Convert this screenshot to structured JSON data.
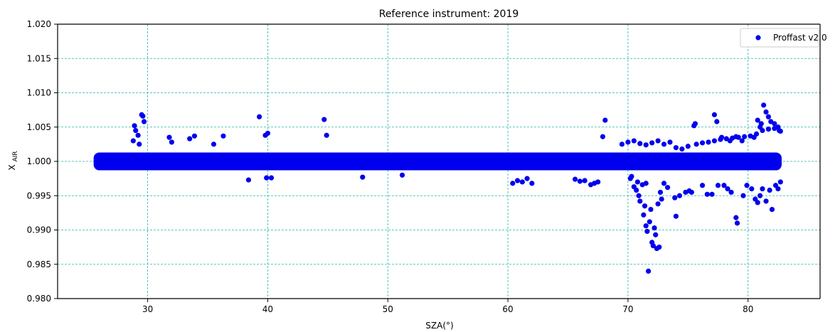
{
  "chart_data": {
    "type": "scatter",
    "title": "Reference instrument: 2019",
    "xlabel": "SZA(°)",
    "ylabel_main": "X",
    "ylabel_sub": "AIR",
    "xlim": [
      22.5,
      86
    ],
    "ylim": [
      0.98,
      1.02
    ],
    "x_ticks": [
      30,
      40,
      50,
      60,
      70,
      80
    ],
    "x_tick_labels": [
      "30",
      "40",
      "50",
      "60",
      "70",
      "80"
    ],
    "y_ticks": [
      0.98,
      0.985,
      0.99,
      0.995,
      1.0,
      1.005,
      1.01,
      1.015,
      1.02
    ],
    "y_tick_labels": [
      "0.980",
      "0.985",
      "0.990",
      "0.995",
      "1.000",
      "1.005",
      "1.010",
      "1.015",
      "1.020"
    ],
    "grid": true,
    "grid_color": "#20b2aa",
    "legend_placement": "top-right",
    "series": [
      {
        "name": "Proffast v2.0",
        "color": "#0000ee",
        "band": {
          "x_range": [
            25.5,
            82.8
          ],
          "y_center": 1.0,
          "y_half_width": 0.0013
        },
        "points": [
          [
            28.9,
            1.0052
          ],
          [
            29.0,
            1.0045
          ],
          [
            29.2,
            1.0038
          ],
          [
            29.5,
            1.0068
          ],
          [
            29.6,
            1.0066
          ],
          [
            29.7,
            1.0058
          ],
          [
            28.8,
            1.003
          ],
          [
            29.3,
            1.0025
          ],
          [
            31.8,
            1.0035
          ],
          [
            32.0,
            1.0028
          ],
          [
            33.5,
            1.0033
          ],
          [
            33.9,
            1.0037
          ],
          [
            35.5,
            1.0025
          ],
          [
            36.3,
            1.0037
          ],
          [
            39.3,
            1.0065
          ],
          [
            40.0,
            1.0041
          ],
          [
            39.8,
            1.0038
          ],
          [
            44.7,
            1.0061
          ],
          [
            44.9,
            1.0038
          ],
          [
            38.4,
            0.9973
          ],
          [
            39.9,
            0.9976
          ],
          [
            40.3,
            0.9976
          ],
          [
            47.9,
            0.9977
          ],
          [
            51.2,
            0.998
          ],
          [
            60.4,
            0.9968
          ],
          [
            60.8,
            0.9972
          ],
          [
            61.2,
            0.997
          ],
          [
            61.6,
            0.9975
          ],
          [
            62.0,
            0.9968
          ],
          [
            65.6,
            0.9974
          ],
          [
            66.0,
            0.9971
          ],
          [
            66.4,
            0.9972
          ],
          [
            66.9,
            0.9966
          ],
          [
            67.2,
            0.9968
          ],
          [
            67.5,
            0.997
          ],
          [
            67.9,
            1.0036
          ],
          [
            68.1,
            1.006
          ],
          [
            70.3,
            0.9978
          ],
          [
            70.5,
            0.9963
          ],
          [
            70.7,
            0.9958
          ],
          [
            70.9,
            0.995
          ],
          [
            71.0,
            0.9942
          ],
          [
            71.2,
            0.9966
          ],
          [
            71.3,
            0.9922
          ],
          [
            71.4,
            0.9935
          ],
          [
            71.5,
            0.9906
          ],
          [
            71.6,
            0.9898
          ],
          [
            71.7,
            0.984
          ],
          [
            71.8,
            0.9912
          ],
          [
            71.9,
            0.993
          ],
          [
            72.0,
            0.9882
          ],
          [
            72.1,
            0.9877
          ],
          [
            72.2,
            0.9903
          ],
          [
            72.3,
            0.9893
          ],
          [
            72.4,
            0.9873
          ],
          [
            72.5,
            0.9938
          ],
          [
            72.6,
            0.9875
          ],
          [
            72.7,
            0.9955
          ],
          [
            72.8,
            0.9945
          ],
          [
            73.0,
            0.9968
          ],
          [
            73.3,
            0.9962
          ],
          [
            73.9,
            0.9947
          ],
          [
            74.0,
            0.992
          ],
          [
            74.3,
            0.995
          ],
          [
            74.8,
            0.9955
          ],
          [
            75.1,
            0.9957
          ],
          [
            75.3,
            0.9955
          ],
          [
            75.5,
            1.0052
          ],
          [
            75.6,
            1.0055
          ],
          [
            76.2,
            0.9965
          ],
          [
            76.6,
            0.9952
          ],
          [
            77.0,
            0.9952
          ],
          [
            77.2,
            1.0068
          ],
          [
            77.4,
            1.0058
          ],
          [
            77.5,
            0.9965
          ],
          [
            72.5,
            1.003
          ],
          [
            73.0,
            1.0025
          ],
          [
            73.5,
            1.0028
          ],
          [
            74.0,
            1.002
          ],
          [
            74.5,
            1.0018
          ],
          [
            75.0,
            1.0022
          ],
          [
            75.7,
            1.0025
          ],
          [
            76.2,
            1.0027
          ],
          [
            76.7,
            1.0028
          ],
          [
            77.2,
            1.003
          ],
          [
            77.7,
            1.0032
          ],
          [
            78.2,
            1.0033
          ],
          [
            78.7,
            1.0034
          ],
          [
            79.2,
            1.0035
          ],
          [
            79.7,
            1.0036
          ],
          [
            80.2,
            1.0037
          ],
          [
            80.7,
            1.004
          ],
          [
            81.2,
            1.0045
          ],
          [
            81.7,
            1.0047
          ],
          [
            82.2,
            1.0048
          ],
          [
            82.6,
            1.0045
          ],
          [
            77.8,
            1.0035
          ],
          [
            78.5,
            1.003
          ],
          [
            79.0,
            1.0036
          ],
          [
            79.5,
            1.003
          ],
          [
            80.5,
            1.0035
          ],
          [
            81.0,
            1.005
          ],
          [
            80.8,
            1.006
          ],
          [
            81.1,
            1.0055
          ],
          [
            81.3,
            1.0082
          ],
          [
            81.5,
            1.0072
          ],
          [
            81.7,
            1.0065
          ],
          [
            81.9,
            1.0058
          ],
          [
            82.2,
            1.0055
          ],
          [
            82.5,
            1.005
          ],
          [
            82.7,
            1.0044
          ],
          [
            78.0,
            0.9965
          ],
          [
            78.3,
            0.996
          ],
          [
            78.6,
            0.9955
          ],
          [
            79.0,
            0.9918
          ],
          [
            79.1,
            0.991
          ],
          [
            79.6,
            0.995
          ],
          [
            79.9,
            0.9965
          ],
          [
            80.3,
            0.996
          ],
          [
            80.6,
            0.9945
          ],
          [
            80.8,
            0.994
          ],
          [
            81.0,
            0.995
          ],
          [
            81.2,
            0.996
          ],
          [
            81.5,
            0.9942
          ],
          [
            81.8,
            0.9958
          ],
          [
            82.0,
            0.993
          ],
          [
            82.3,
            0.9965
          ],
          [
            82.5,
            0.996
          ],
          [
            82.7,
            0.997
          ],
          [
            69.5,
            1.0025
          ],
          [
            70.0,
            1.0028
          ],
          [
            70.5,
            1.003
          ],
          [
            71.0,
            1.0026
          ],
          [
            71.5,
            1.0024
          ],
          [
            72.0,
            1.0027
          ],
          [
            70.2,
            0.9975
          ],
          [
            70.8,
            0.997
          ],
          [
            71.5,
            0.9968
          ]
        ]
      }
    ]
  }
}
